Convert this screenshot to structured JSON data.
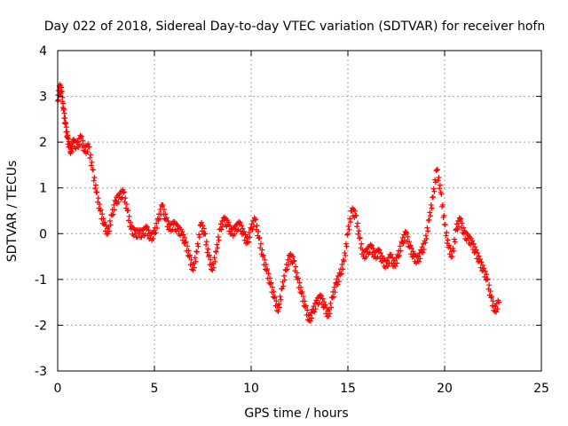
{
  "chart_data": {
    "type": "scatter",
    "title": "Day 022 of 2018, Sidereal Day-to-day VTEC variation (SDTVAR) for receiver hofn",
    "xlabel": "GPS time / hours",
    "ylabel": "SDTVAR / TECUs",
    "xlim": [
      0,
      25
    ],
    "ylim": [
      -3,
      4
    ],
    "x_ticks": [
      0,
      5,
      10,
      15,
      20,
      25
    ],
    "y_ticks": [
      -3,
      -2,
      -1,
      0,
      1,
      2,
      3,
      4
    ],
    "x_tick_labels": [
      "0",
      "5",
      "10",
      "15",
      "20",
      "25"
    ],
    "y_tick_labels": [
      "-3",
      "-2",
      "-1",
      "0",
      "1",
      "2",
      "3",
      "4"
    ],
    "grid": true,
    "marker": "+",
    "color": "#ff0000",
    "series": [
      {
        "name": "SDTVAR",
        "x": [
          0.0,
          0.1,
          0.2,
          0.3,
          0.4,
          0.5,
          0.6,
          0.7,
          0.8,
          1.0,
          1.2,
          1.4,
          1.6,
          1.8,
          2.0,
          2.2,
          2.4,
          2.6,
          2.8,
          3.0,
          3.2,
          3.4,
          3.6,
          3.8,
          4.0,
          4.2,
          4.4,
          4.6,
          4.8,
          5.0,
          5.2,
          5.4,
          5.6,
          5.8,
          6.0,
          6.2,
          6.4,
          6.6,
          6.8,
          7.0,
          7.2,
          7.4,
          7.6,
          7.8,
          8.0,
          8.2,
          8.4,
          8.6,
          8.8,
          9.0,
          9.2,
          9.4,
          9.6,
          9.8,
          10.0,
          10.2,
          10.4,
          10.6,
          10.8,
          11.0,
          11.2,
          11.4,
          11.6,
          11.8,
          12.0,
          12.2,
          12.4,
          12.6,
          12.8,
          13.0,
          13.2,
          13.4,
          13.6,
          13.8,
          14.0,
          14.2,
          14.4,
          14.6,
          14.8,
          15.0,
          15.2,
          15.4,
          15.6,
          15.8,
          16.0,
          16.2,
          16.4,
          16.6,
          16.8,
          17.0,
          17.2,
          17.4,
          17.6,
          17.8,
          18.0,
          18.2,
          18.4,
          18.6,
          18.8,
          19.0,
          19.2,
          19.4,
          19.6,
          19.8,
          20.0,
          20.2,
          20.4,
          20.6,
          20.8,
          21.0,
          21.2,
          21.4,
          21.6,
          21.8,
          22.0,
          22.2,
          22.4,
          22.6,
          22.8
        ],
        "y": [
          2.9,
          3.2,
          3.1,
          2.7,
          2.4,
          2.1,
          1.9,
          1.8,
          2.0,
          1.9,
          2.1,
          1.8,
          1.9,
          1.4,
          0.9,
          0.5,
          0.2,
          0.0,
          0.4,
          0.7,
          0.8,
          0.9,
          0.5,
          0.1,
          0.0,
          0.0,
          0.0,
          0.1,
          -0.1,
          0.0,
          0.3,
          0.6,
          0.3,
          0.1,
          0.2,
          0.1,
          0.0,
          -0.2,
          -0.5,
          -0.8,
          -0.4,
          0.2,
          0.0,
          -0.5,
          -0.8,
          -0.4,
          0.1,
          0.3,
          0.2,
          0.0,
          0.1,
          0.2,
          0.0,
          -0.2,
          0.1,
          0.3,
          -0.1,
          -0.5,
          -0.8,
          -1.1,
          -1.4,
          -1.7,
          -1.2,
          -0.8,
          -0.5,
          -0.6,
          -1.0,
          -1.3,
          -1.6,
          -1.9,
          -1.7,
          -1.5,
          -1.4,
          -1.6,
          -1.8,
          -1.4,
          -1.1,
          -0.9,
          -0.6,
          0.0,
          0.5,
          0.4,
          -0.1,
          -0.5,
          -0.4,
          -0.3,
          -0.5,
          -0.4,
          -0.6,
          -0.7,
          -0.5,
          -0.7,
          -0.5,
          -0.2,
          0.0,
          -0.3,
          -0.5,
          -0.6,
          -0.4,
          -0.2,
          0.3,
          0.8,
          1.4,
          0.9,
          0.2,
          -0.3,
          -0.5,
          0.1,
          0.3,
          0.0,
          -0.1,
          -0.2,
          -0.4,
          -0.6,
          -0.8,
          -1.0,
          -1.4,
          -1.7,
          -1.5
        ]
      }
    ]
  }
}
